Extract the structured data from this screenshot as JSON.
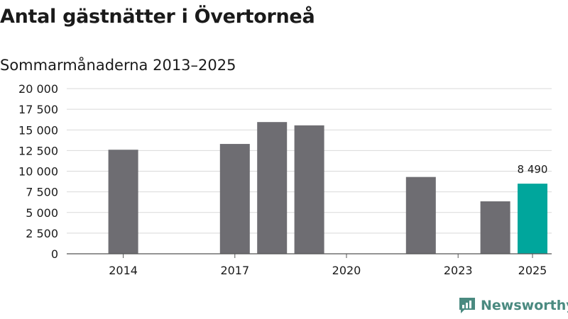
{
  "title": "Antal gästnätter i Övertorneå",
  "subtitle": "Sommarmånaderna 2013–2025",
  "brand": "Newsworthy",
  "colors": {
    "bar": "#6e6d72",
    "highlight": "#00a69c",
    "grid": "#d9d9d9",
    "brand": "#4a8a80"
  },
  "chart_data": {
    "type": "bar",
    "x": [
      2013,
      2014,
      2015,
      2016,
      2017,
      2018,
      2019,
      2020,
      2021,
      2022,
      2023,
      2024,
      2025
    ],
    "values": [
      null,
      12600,
      null,
      null,
      13300,
      15950,
      15550,
      null,
      null,
      9300,
      null,
      6350,
      8490
    ],
    "highlight_x": 2025,
    "highlight_label": "8 490",
    "xticks": [
      "2014",
      "2017",
      "2020",
      "2023",
      "2025"
    ],
    "yticks": [
      "0",
      "2 500",
      "5 000",
      "7 500",
      "10 000",
      "12 500",
      "15 000",
      "17 500",
      "20 000"
    ],
    "ylim": [
      0,
      20000
    ],
    "grid": true
  }
}
